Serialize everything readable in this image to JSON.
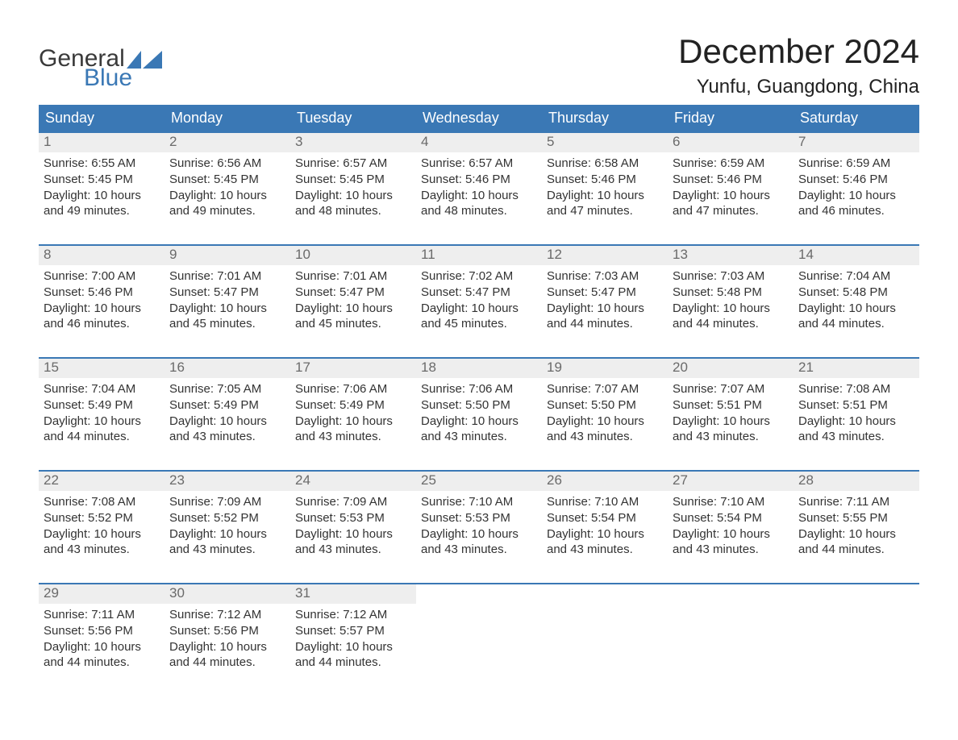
{
  "brand": {
    "word1": "General",
    "word2": "Blue",
    "flag_color": "#3a78b5",
    "word1_color": "#3a3a3a",
    "word2_color": "#3a78b5"
  },
  "title": "December 2024",
  "location": "Yunfu, Guangdong, China",
  "colors": {
    "header_bg": "#3a78b5",
    "header_text": "#ffffff",
    "daynum_bg": "#eeeeee",
    "daynum_text": "#6a6a6a",
    "body_text": "#333333",
    "week_border": "#3a78b5",
    "page_bg": "#ffffff"
  },
  "typography": {
    "title_fontsize": 42,
    "location_fontsize": 24,
    "weekday_fontsize": 18,
    "daynum_fontsize": 17,
    "body_fontsize": 15
  },
  "weekdays": [
    "Sunday",
    "Monday",
    "Tuesday",
    "Wednesday",
    "Thursday",
    "Friday",
    "Saturday"
  ],
  "labels": {
    "sunrise": "Sunrise: ",
    "sunset": "Sunset: ",
    "daylight_prefix": "Daylight: ",
    "daylight_hours_word": " hours",
    "daylight_and": "and ",
    "daylight_minutes_word": " minutes."
  },
  "weeks": [
    [
      {
        "n": "1",
        "sunrise": "6:55 AM",
        "sunset": "5:45 PM",
        "dh": "10",
        "dm": "49"
      },
      {
        "n": "2",
        "sunrise": "6:56 AM",
        "sunset": "5:45 PM",
        "dh": "10",
        "dm": "49"
      },
      {
        "n": "3",
        "sunrise": "6:57 AM",
        "sunset": "5:45 PM",
        "dh": "10",
        "dm": "48"
      },
      {
        "n": "4",
        "sunrise": "6:57 AM",
        "sunset": "5:46 PM",
        "dh": "10",
        "dm": "48"
      },
      {
        "n": "5",
        "sunrise": "6:58 AM",
        "sunset": "5:46 PM",
        "dh": "10",
        "dm": "47"
      },
      {
        "n": "6",
        "sunrise": "6:59 AM",
        "sunset": "5:46 PM",
        "dh": "10",
        "dm": "47"
      },
      {
        "n": "7",
        "sunrise": "6:59 AM",
        "sunset": "5:46 PM",
        "dh": "10",
        "dm": "46"
      }
    ],
    [
      {
        "n": "8",
        "sunrise": "7:00 AM",
        "sunset": "5:46 PM",
        "dh": "10",
        "dm": "46"
      },
      {
        "n": "9",
        "sunrise": "7:01 AM",
        "sunset": "5:47 PM",
        "dh": "10",
        "dm": "45"
      },
      {
        "n": "10",
        "sunrise": "7:01 AM",
        "sunset": "5:47 PM",
        "dh": "10",
        "dm": "45"
      },
      {
        "n": "11",
        "sunrise": "7:02 AM",
        "sunset": "5:47 PM",
        "dh": "10",
        "dm": "45"
      },
      {
        "n": "12",
        "sunrise": "7:03 AM",
        "sunset": "5:47 PM",
        "dh": "10",
        "dm": "44"
      },
      {
        "n": "13",
        "sunrise": "7:03 AM",
        "sunset": "5:48 PM",
        "dh": "10",
        "dm": "44"
      },
      {
        "n": "14",
        "sunrise": "7:04 AM",
        "sunset": "5:48 PM",
        "dh": "10",
        "dm": "44"
      }
    ],
    [
      {
        "n": "15",
        "sunrise": "7:04 AM",
        "sunset": "5:49 PM",
        "dh": "10",
        "dm": "44"
      },
      {
        "n": "16",
        "sunrise": "7:05 AM",
        "sunset": "5:49 PM",
        "dh": "10",
        "dm": "43"
      },
      {
        "n": "17",
        "sunrise": "7:06 AM",
        "sunset": "5:49 PM",
        "dh": "10",
        "dm": "43"
      },
      {
        "n": "18",
        "sunrise": "7:06 AM",
        "sunset": "5:50 PM",
        "dh": "10",
        "dm": "43"
      },
      {
        "n": "19",
        "sunrise": "7:07 AM",
        "sunset": "5:50 PM",
        "dh": "10",
        "dm": "43"
      },
      {
        "n": "20",
        "sunrise": "7:07 AM",
        "sunset": "5:51 PM",
        "dh": "10",
        "dm": "43"
      },
      {
        "n": "21",
        "sunrise": "7:08 AM",
        "sunset": "5:51 PM",
        "dh": "10",
        "dm": "43"
      }
    ],
    [
      {
        "n": "22",
        "sunrise": "7:08 AM",
        "sunset": "5:52 PM",
        "dh": "10",
        "dm": "43"
      },
      {
        "n": "23",
        "sunrise": "7:09 AM",
        "sunset": "5:52 PM",
        "dh": "10",
        "dm": "43"
      },
      {
        "n": "24",
        "sunrise": "7:09 AM",
        "sunset": "5:53 PM",
        "dh": "10",
        "dm": "43"
      },
      {
        "n": "25",
        "sunrise": "7:10 AM",
        "sunset": "5:53 PM",
        "dh": "10",
        "dm": "43"
      },
      {
        "n": "26",
        "sunrise": "7:10 AM",
        "sunset": "5:54 PM",
        "dh": "10",
        "dm": "43"
      },
      {
        "n": "27",
        "sunrise": "7:10 AM",
        "sunset": "5:54 PM",
        "dh": "10",
        "dm": "43"
      },
      {
        "n": "28",
        "sunrise": "7:11 AM",
        "sunset": "5:55 PM",
        "dh": "10",
        "dm": "44"
      }
    ],
    [
      {
        "n": "29",
        "sunrise": "7:11 AM",
        "sunset": "5:56 PM",
        "dh": "10",
        "dm": "44"
      },
      {
        "n": "30",
        "sunrise": "7:12 AM",
        "sunset": "5:56 PM",
        "dh": "10",
        "dm": "44"
      },
      {
        "n": "31",
        "sunrise": "7:12 AM",
        "sunset": "5:57 PM",
        "dh": "10",
        "dm": "44"
      },
      null,
      null,
      null,
      null
    ]
  ]
}
